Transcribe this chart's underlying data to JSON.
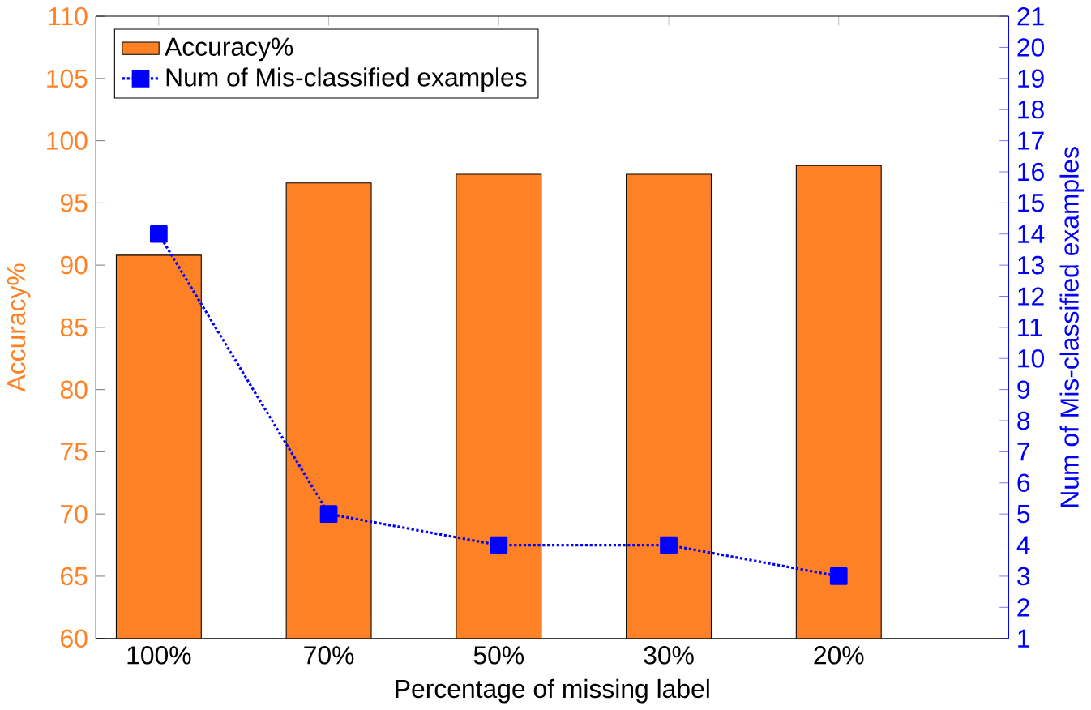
{
  "chart_data": {
    "type": "bar",
    "xlabel": "Percentage of missing label",
    "ylabel": "Accuracy%",
    "y2label": "Num of Mis-classified examples",
    "categories": [
      "100%",
      "70%",
      "50%",
      "30%",
      "20%"
    ],
    "series": [
      {
        "name": "Accuracy%",
        "color": "#ff8125",
        "values": [
          90.8,
          96.6,
          97.3,
          97.3,
          98.0
        ]
      },
      {
        "name": "Num of Mis-classified examples",
        "type": "line",
        "axis": "y2",
        "color": "#0000ff",
        "marker": "square",
        "line_style": "dotted",
        "values": [
          14,
          5,
          4,
          4,
          3
        ]
      }
    ],
    "ylim": [
      60,
      110
    ],
    "yticks": [
      60,
      65,
      70,
      75,
      80,
      85,
      90,
      95,
      100,
      105,
      110
    ],
    "y2lim": [
      1,
      21
    ],
    "y2ticks": [
      1,
      2,
      3,
      4,
      5,
      6,
      7,
      8,
      9,
      10,
      11,
      12,
      13,
      14,
      15,
      16,
      17,
      18,
      19,
      20,
      21
    ],
    "grid": false,
    "legend": "top left"
  }
}
